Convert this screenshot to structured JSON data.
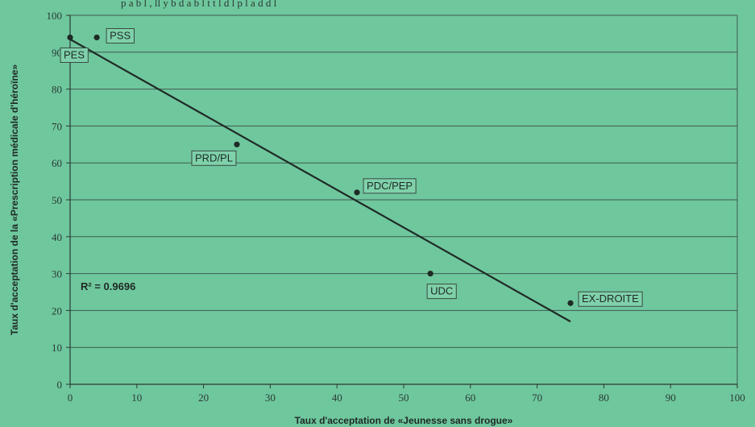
{
  "top_text": "p a b l , ll y b d a b l t t l d l p l a d d l",
  "chart_data": {
    "type": "scatter",
    "xlabel": "Taux d'acceptation de «Jeunesse sans drogue»",
    "ylabel": "Taux d'acceptation de la «Prescription médicale d'héroïne»",
    "xlim": [
      0,
      100
    ],
    "ylim": [
      0,
      100
    ],
    "xticks": [
      0,
      10,
      20,
      30,
      40,
      50,
      60,
      70,
      80,
      90,
      100
    ],
    "yticks": [
      0,
      10,
      20,
      30,
      40,
      50,
      60,
      70,
      80,
      90,
      100
    ],
    "grid": "horizontal",
    "points": [
      {
        "label": "PES",
        "x": 0,
        "y": 94
      },
      {
        "label": "PSS",
        "x": 4,
        "y": 94
      },
      {
        "label": "PRD/PL",
        "x": 25,
        "y": 65
      },
      {
        "label": "PDC/PEP",
        "x": 43,
        "y": 52
      },
      {
        "label": "UDC",
        "x": 54,
        "y": 30
      },
      {
        "label": "EX-DROITE",
        "x": 75,
        "y": 22
      }
    ],
    "trendline": {
      "x": [
        0,
        75
      ],
      "y": [
        93.5,
        17
      ]
    },
    "annotation": "R² = 0.9696",
    "colors": {
      "background": "#6fc79e",
      "marks": "#1f2a25"
    }
  }
}
